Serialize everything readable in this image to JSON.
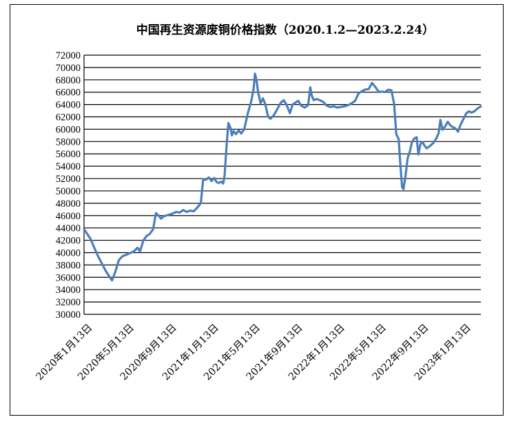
{
  "chart_data": {
    "type": "line",
    "title": "中国再生资源废铜价格指数（2020.1.2—2023.2.24）",
    "xlabel": "",
    "ylabel": "",
    "ylim": [
      30000,
      72000
    ],
    "yticks": [
      30000,
      32000,
      34000,
      36000,
      38000,
      40000,
      42000,
      44000,
      46000,
      48000,
      50000,
      52000,
      54000,
      56000,
      58000,
      60000,
      62000,
      64000,
      66000,
      68000,
      70000,
      72000
    ],
    "ytick_labels": [
      "30000",
      "32000",
      "34000",
      "36000",
      "38000",
      "40000",
      "42000",
      "44000",
      "46000",
      "48000",
      "50000",
      "52000",
      "54000",
      "56000",
      "58000",
      "60000",
      "62000",
      "64000",
      "66000",
      "68000",
      "70000",
      "72000"
    ],
    "xticks": [
      {
        "label": "2020年1月13日",
        "x": "2020-01-13"
      },
      {
        "label": "2020年5月13日",
        "x": "2020-05-13"
      },
      {
        "label": "2020年9月13日",
        "x": "2020-09-13"
      },
      {
        "label": "2021年1月13日",
        "x": "2021-01-13"
      },
      {
        "label": "2021年5月13日",
        "x": "2021-05-13"
      },
      {
        "label": "2021年9月13日",
        "x": "2021-09-13"
      },
      {
        "label": "2022年1月13日",
        "x": "2022-01-13"
      },
      {
        "label": "2022年5月13日",
        "x": "2022-05-13"
      },
      {
        "label": "2022年9月13日",
        "x": "2022-09-13"
      },
      {
        "label": "2023年1月13日",
        "x": "2023-01-13"
      }
    ],
    "xlim": [
      "2020-01-02",
      "2023-02-24"
    ],
    "grid": true,
    "legend": "none",
    "series": [
      {
        "color": "#4a7ebb",
        "points": [
          [
            "2020-01-02",
            43800
          ],
          [
            "2020-01-20",
            42300
          ],
          [
            "2020-02-10",
            39600
          ],
          [
            "2020-03-05",
            37000
          ],
          [
            "2020-03-23",
            35500
          ],
          [
            "2020-04-01",
            36800
          ],
          [
            "2020-04-12",
            38800
          ],
          [
            "2020-04-22",
            39400
          ],
          [
            "2020-05-05",
            39700
          ],
          [
            "2020-05-13",
            39900
          ],
          [
            "2020-05-25",
            40200
          ],
          [
            "2020-06-05",
            40800
          ],
          [
            "2020-06-12",
            40200
          ],
          [
            "2020-06-22",
            42000
          ],
          [
            "2020-07-01",
            42700
          ],
          [
            "2020-07-10",
            43000
          ],
          [
            "2020-07-20",
            43800
          ],
          [
            "2020-07-28",
            46400
          ],
          [
            "2020-08-05",
            46000
          ],
          [
            "2020-08-12",
            45500
          ],
          [
            "2020-08-20",
            45900
          ],
          [
            "2020-09-01",
            46100
          ],
          [
            "2020-09-13",
            46300
          ],
          [
            "2020-09-25",
            46600
          ],
          [
            "2020-10-05",
            46500
          ],
          [
            "2020-10-15",
            46900
          ],
          [
            "2020-10-25",
            46600
          ],
          [
            "2020-11-05",
            46800
          ],
          [
            "2020-11-15",
            46700
          ],
          [
            "2020-11-25",
            47300
          ],
          [
            "2020-12-05",
            48000
          ],
          [
            "2020-12-12",
            51900
          ],
          [
            "2020-12-20",
            51800
          ],
          [
            "2020-12-28",
            52200
          ],
          [
            "2021-01-05",
            51600
          ],
          [
            "2021-01-13",
            52100
          ],
          [
            "2021-01-20",
            51400
          ],
          [
            "2021-01-26",
            51300
          ],
          [
            "2021-02-02",
            51500
          ],
          [
            "2021-02-08",
            51200
          ],
          [
            "2021-02-12",
            52500
          ],
          [
            "2021-02-18",
            57500
          ],
          [
            "2021-02-23",
            61000
          ],
          [
            "2021-03-01",
            60200
          ],
          [
            "2021-03-05",
            59000
          ],
          [
            "2021-03-10",
            59700
          ],
          [
            "2021-03-17",
            59200
          ],
          [
            "2021-03-25",
            59800
          ],
          [
            "2021-04-01",
            59300
          ],
          [
            "2021-04-10",
            60000
          ],
          [
            "2021-04-20",
            62500
          ],
          [
            "2021-04-30",
            64500
          ],
          [
            "2021-05-07",
            66500
          ],
          [
            "2021-05-11",
            69000
          ],
          [
            "2021-05-15",
            68000
          ],
          [
            "2021-05-20",
            66000
          ],
          [
            "2021-05-27",
            64200
          ],
          [
            "2021-06-03",
            65000
          ],
          [
            "2021-06-10",
            64000
          ],
          [
            "2021-06-18",
            62000
          ],
          [
            "2021-06-25",
            61700
          ],
          [
            "2021-07-05",
            62300
          ],
          [
            "2021-07-15",
            63300
          ],
          [
            "2021-07-25",
            64300
          ],
          [
            "2021-08-02",
            64700
          ],
          [
            "2021-08-10",
            64000
          ],
          [
            "2021-08-20",
            62600
          ],
          [
            "2021-08-28",
            64000
          ],
          [
            "2021-09-05",
            64300
          ],
          [
            "2021-09-13",
            64600
          ],
          [
            "2021-09-22",
            63800
          ],
          [
            "2021-10-02",
            63500
          ],
          [
            "2021-10-12",
            63900
          ],
          [
            "2021-10-18",
            66800
          ],
          [
            "2021-10-22",
            65500
          ],
          [
            "2021-10-28",
            64700
          ],
          [
            "2021-11-05",
            64900
          ],
          [
            "2021-11-15",
            64700
          ],
          [
            "2021-11-25",
            64400
          ],
          [
            "2021-12-05",
            63800
          ],
          [
            "2021-12-15",
            63600
          ],
          [
            "2021-12-25",
            63700
          ],
          [
            "2022-01-05",
            63500
          ],
          [
            "2022-01-13",
            63600
          ],
          [
            "2022-01-25",
            63700
          ],
          [
            "2022-02-05",
            63900
          ],
          [
            "2022-02-15",
            64200
          ],
          [
            "2022-02-25",
            64600
          ],
          [
            "2022-03-07",
            65800
          ],
          [
            "2022-03-15",
            66100
          ],
          [
            "2022-03-25",
            66400
          ],
          [
            "2022-04-05",
            66500
          ],
          [
            "2022-04-15",
            67500
          ],
          [
            "2022-04-25",
            66800
          ],
          [
            "2022-05-05",
            66000
          ],
          [
            "2022-05-13",
            66100
          ],
          [
            "2022-05-22",
            66000
          ],
          [
            "2022-06-01",
            66400
          ],
          [
            "2022-06-10",
            66300
          ],
          [
            "2022-06-18",
            64000
          ],
          [
            "2022-06-24",
            59200
          ],
          [
            "2022-07-01",
            58400
          ],
          [
            "2022-07-06",
            54200
          ],
          [
            "2022-07-11",
            50600
          ],
          [
            "2022-07-15",
            50300
          ],
          [
            "2022-07-21",
            52500
          ],
          [
            "2022-07-27",
            55300
          ],
          [
            "2022-08-03",
            56500
          ],
          [
            "2022-08-08",
            57800
          ],
          [
            "2022-08-15",
            58500
          ],
          [
            "2022-08-22",
            58700
          ],
          [
            "2022-08-27",
            55900
          ],
          [
            "2022-09-02",
            57600
          ],
          [
            "2022-09-08",
            57900
          ],
          [
            "2022-09-13",
            57400
          ],
          [
            "2022-09-20",
            56900
          ],
          [
            "2022-09-30",
            57300
          ],
          [
            "2022-10-10",
            57800
          ],
          [
            "2022-10-18",
            58500
          ],
          [
            "2022-10-25",
            59400
          ],
          [
            "2022-10-30",
            61500
          ],
          [
            "2022-11-05",
            59900
          ],
          [
            "2022-11-12",
            60400
          ],
          [
            "2022-11-20",
            61200
          ],
          [
            "2022-11-28",
            60600
          ],
          [
            "2022-12-06",
            60300
          ],
          [
            "2022-12-13",
            60100
          ],
          [
            "2022-12-20",
            59600
          ],
          [
            "2022-12-27",
            60700
          ],
          [
            "2023-01-05",
            61700
          ],
          [
            "2023-01-13",
            62600
          ],
          [
            "2023-01-20",
            62900
          ],
          [
            "2023-01-28",
            62700
          ],
          [
            "2023-02-05",
            62900
          ],
          [
            "2023-02-13",
            63300
          ],
          [
            "2023-02-24",
            63700
          ]
        ]
      }
    ]
  }
}
